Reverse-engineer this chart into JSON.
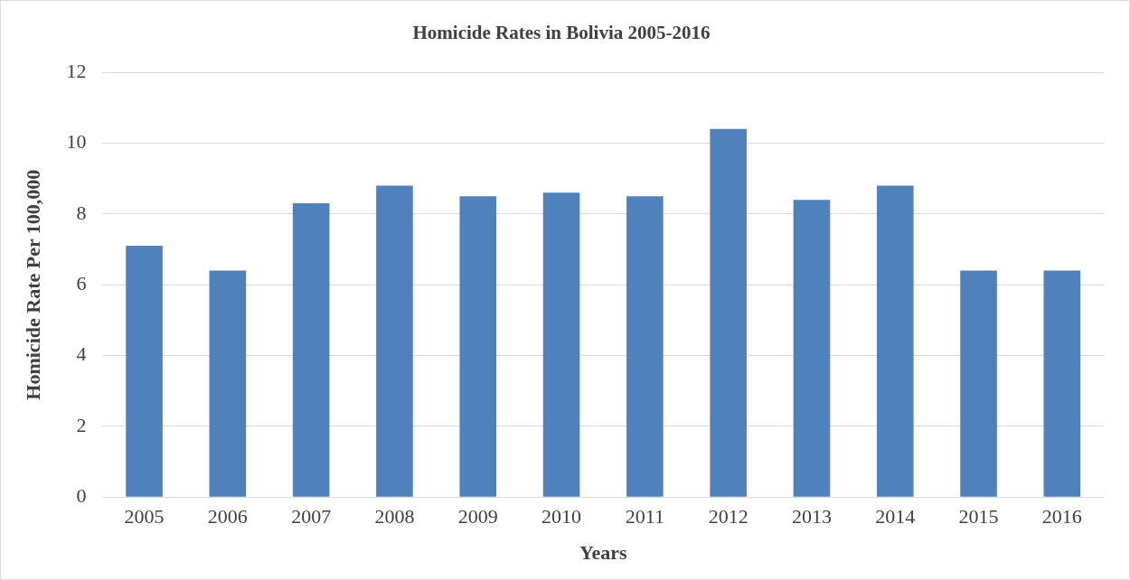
{
  "chart_data": {
    "type": "bar",
    "title": "Homicide Rates in Bolivia 2005-2016",
    "xlabel": "Years",
    "ylabel": "Homicide Rate Per 100,000",
    "categories": [
      "2005",
      "2006",
      "2007",
      "2008",
      "2009",
      "2010",
      "2011",
      "2012",
      "2013",
      "2014",
      "2015",
      "2016"
    ],
    "values": [
      7.1,
      6.4,
      8.3,
      8.8,
      8.5,
      8.6,
      8.5,
      10.4,
      8.4,
      8.8,
      6.4,
      6.4
    ],
    "color": "#4f81bd",
    "ylim": [
      0,
      12
    ],
    "yticks": [
      0,
      2,
      4,
      6,
      8,
      10,
      12
    ],
    "grid": "y"
  }
}
